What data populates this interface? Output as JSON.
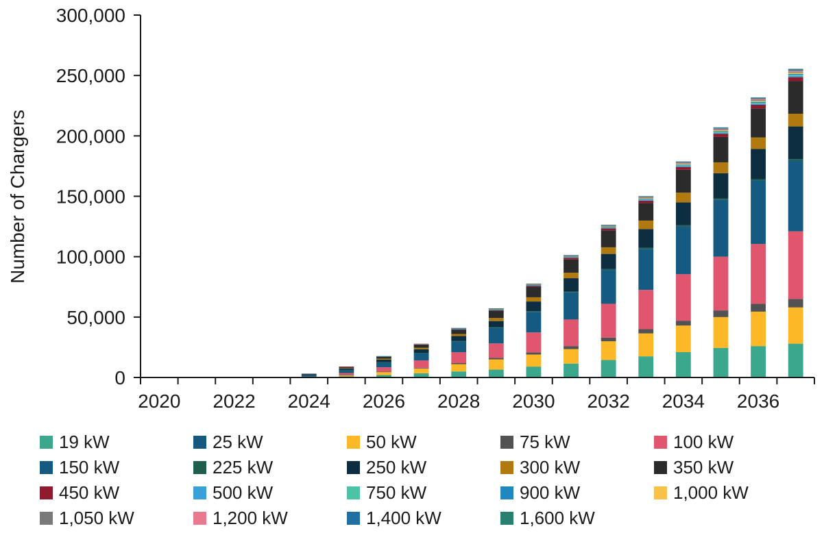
{
  "chart_data": {
    "type": "bar",
    "stacked": true,
    "title": "",
    "xlabel": "",
    "ylabel": "Number of Chargers",
    "ylim": [
      0,
      300000
    ],
    "yticks": [
      0,
      50000,
      100000,
      150000,
      200000,
      250000,
      300000
    ],
    "ytick_labels": [
      "0",
      "50,000",
      "100,000",
      "150,000",
      "200,000",
      "250,000",
      "300,000"
    ],
    "categories": [
      "2020",
      "2021",
      "2022",
      "2023",
      "2024",
      "2025",
      "2026",
      "2027",
      "2028",
      "2029",
      "2030",
      "2031",
      "2032",
      "2033",
      "2034",
      "2035",
      "2036",
      "2037"
    ],
    "x_tick_labels": [
      "2020",
      "2022",
      "2024",
      "2026",
      "2028",
      "2030",
      "2032",
      "2034",
      "2036"
    ],
    "grid": false,
    "legend_position": "bottom",
    "series": [
      {
        "name": "19 kW",
        "color": "#3BA88E",
        "values": [
          0,
          0,
          0,
          0,
          200,
          1000,
          2000,
          3500,
          5000,
          6500,
          9000,
          11500,
          14500,
          17500,
          21000,
          24500,
          26000,
          28000
        ]
      },
      {
        "name": "25 kW",
        "color": "#17587E",
        "values": [
          0,
          0,
          0,
          0,
          0,
          0,
          0,
          0,
          0,
          0,
          0,
          0,
          0,
          0,
          0,
          0,
          0,
          0
        ]
      },
      {
        "name": "50 kW",
        "color": "#FDB827",
        "values": [
          0,
          0,
          0,
          0,
          200,
          1000,
          2500,
          4000,
          6000,
          8500,
          10000,
          12000,
          15500,
          19000,
          22000,
          25500,
          28500,
          30000
        ]
      },
      {
        "name": "75 kW",
        "color": "#525252",
        "values": [
          0,
          0,
          0,
          0,
          0,
          200,
          400,
          600,
          900,
          1200,
          1800,
          2500,
          3000,
          3500,
          4000,
          5500,
          6500,
          7000
        ]
      },
      {
        "name": "100 kW",
        "color": "#E0566E",
        "values": [
          0,
          0,
          0,
          0,
          300,
          1500,
          3500,
          6000,
          9000,
          12000,
          16500,
          22000,
          28000,
          32500,
          38500,
          44500,
          49500,
          56000
        ]
      },
      {
        "name": "150 kW",
        "color": "#155A80",
        "values": [
          0,
          0,
          0,
          0,
          1200,
          2500,
          4000,
          6000,
          9000,
          13000,
          17000,
          22500,
          28000,
          34000,
          39500,
          47000,
          52500,
          58500
        ]
      },
      {
        "name": "225 kW",
        "color": "#1E5E4E",
        "values": [
          0,
          0,
          0,
          0,
          0,
          100,
          200,
          300,
          400,
          500,
          600,
          700,
          800,
          900,
          1000,
          1100,
          1200,
          1300
        ]
      },
      {
        "name": "250 kW",
        "color": "#0D2D40",
        "values": [
          0,
          0,
          0,
          0,
          800,
          1300,
          2200,
          3000,
          4000,
          5000,
          8000,
          11000,
          12500,
          15500,
          19000,
          21000,
          25000,
          27000
        ]
      },
      {
        "name": "300 kW",
        "color": "#B07A10",
        "values": [
          0,
          0,
          0,
          0,
          0,
          400,
          800,
          1200,
          1700,
          2500,
          3500,
          4500,
          5500,
          7000,
          8000,
          9000,
          9500,
          10500
        ]
      },
      {
        "name": "350 kW",
        "color": "#2B2B2B",
        "values": [
          0,
          0,
          0,
          0,
          400,
          800,
          1700,
          2600,
          3600,
          6000,
          8500,
          11000,
          14000,
          14500,
          19000,
          21000,
          24000,
          27000
        ]
      },
      {
        "name": "450 kW",
        "color": "#8E1B2E",
        "values": [
          0,
          0,
          0,
          0,
          0,
          200,
          300,
          400,
          500,
          700,
          1100,
          1400,
          1700,
          2000,
          2300,
          2700,
          3000,
          3300
        ]
      },
      {
        "name": "500 kW",
        "color": "#3AA0D8",
        "values": [
          0,
          0,
          0,
          0,
          0,
          0,
          100,
          100,
          200,
          200,
          300,
          400,
          500,
          600,
          700,
          800,
          900,
          1000
        ]
      },
      {
        "name": "750 kW",
        "color": "#4CC3A6",
        "values": [
          0,
          0,
          0,
          0,
          0,
          0,
          100,
          100,
          200,
          200,
          300,
          300,
          400,
          500,
          600,
          700,
          800,
          900
        ]
      },
      {
        "name": "900 kW",
        "color": "#1E88BF",
        "values": [
          0,
          0,
          0,
          0,
          0,
          0,
          0,
          100,
          100,
          200,
          200,
          300,
          400,
          500,
          600,
          700,
          800,
          900
        ]
      },
      {
        "name": "1,000 kW",
        "color": "#F8C24A",
        "values": [
          0,
          0,
          0,
          0,
          0,
          0,
          0,
          100,
          100,
          200,
          200,
          300,
          400,
          500,
          600,
          700,
          800,
          900
        ]
      },
      {
        "name": "1,050 kW",
        "color": "#7A7A7A",
        "values": [
          0,
          0,
          0,
          0,
          0,
          0,
          0,
          0,
          100,
          100,
          200,
          200,
          300,
          400,
          500,
          600,
          700,
          800
        ]
      },
      {
        "name": "1,200 kW",
        "color": "#E8798E",
        "values": [
          0,
          0,
          0,
          0,
          0,
          0,
          0,
          100,
          100,
          200,
          200,
          300,
          400,
          500,
          600,
          700,
          800,
          900
        ]
      },
      {
        "name": "1,400 kW",
        "color": "#1F6FA0",
        "values": [
          0,
          0,
          0,
          0,
          0,
          0,
          0,
          0,
          100,
          100,
          200,
          200,
          300,
          400,
          500,
          600,
          700,
          800
        ]
      },
      {
        "name": "1,600 kW",
        "color": "#2A8070",
        "values": [
          0,
          0,
          0,
          0,
          0,
          0,
          0,
          0,
          0,
          100,
          100,
          200,
          200,
          300,
          400,
          500,
          600,
          700
        ]
      }
    ]
  }
}
